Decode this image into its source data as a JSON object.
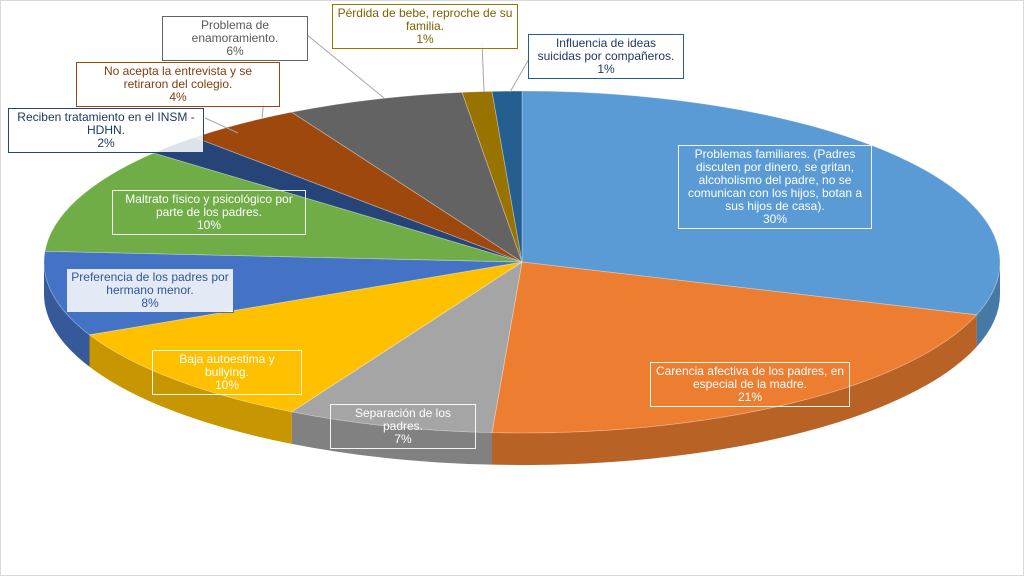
{
  "chart_data": {
    "type": "pie",
    "title": "",
    "slices": [
      {
        "text": "Problemas familiares. (Padres discuten por dinero, se gritan, alcoholismo del padre, no se comunican con los hijos, botan a sus hijos de casa).",
        "pct": "30%",
        "value": 30,
        "color": "#5b9bd5",
        "text_color": "#ffffff"
      },
      {
        "text": "Carencia afectiva de los padres, en especial de la madre.",
        "pct": "21%",
        "value": 21,
        "color": "#ed7d31",
        "text_color": "#ffffff"
      },
      {
        "text": "Separación de los padres.",
        "pct": "7%",
        "value": 7,
        "color": "#a5a5a5",
        "text_color": "#ffffff"
      },
      {
        "text": "Baja autoestima y bullying.",
        "pct": "10%",
        "value": 10,
        "color": "#ffc000",
        "text_color": "#ffffff"
      },
      {
        "text": "Preferencia de los padres por hermano menor.",
        "pct": "8%",
        "value": 8,
        "color": "#4472c4",
        "text_color": "#2f5597"
      },
      {
        "text": "Maltrato físico y psicológico por parte de los padres.",
        "pct": "10%",
        "value": 10,
        "color": "#70ad47",
        "text_color": "#ffffff"
      },
      {
        "text": "Reciben tratamiento en el INSM -HDHN.",
        "pct": "2%",
        "value": 2,
        "color": "#264478",
        "text_color": "#1f3864"
      },
      {
        "text": "No acepta la entrevista y se retiraron del colegio.",
        "pct": "4%",
        "value": 4,
        "color": "#9e480e",
        "text_color": "#843c0c"
      },
      {
        "text": "Problema de enamoramiento.",
        "pct": "6%",
        "value": 6,
        "color": "#636363",
        "text_color": "#595959"
      },
      {
        "text": "Pérdida de bebe, reproche de su familia.",
        "pct": "1%",
        "value": 1,
        "color": "#997300",
        "text_color": "#7f6000"
      },
      {
        "text": "Influencia de ideas suicidas por compañeros.",
        "pct": "1%",
        "value": 1,
        "color": "#255e91",
        "text_color": "#1f3864"
      }
    ]
  }
}
